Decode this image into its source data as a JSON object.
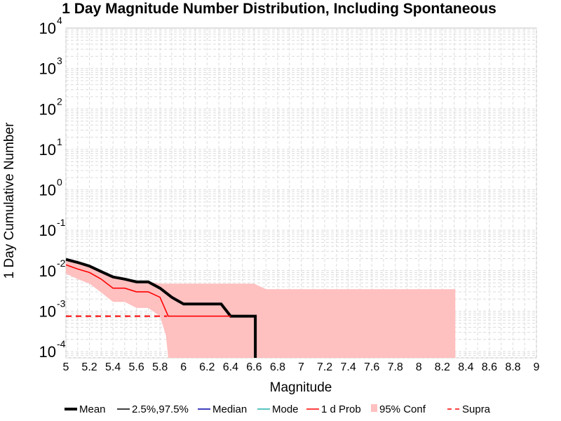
{
  "chart_data": {
    "type": "line",
    "title": "1 Day Magnitude Number Distribution, Including Spontaneous",
    "xlabel": "Magnitude",
    "ylabel": "1 Day Cumulative Number",
    "xlim": [
      5,
      9
    ],
    "ylim": [
      7e-05,
      10000
    ],
    "y_scale": "log",
    "grid": true,
    "x_ticks": [
      "5",
      "5.2",
      "5.4",
      "5.6",
      "5.8",
      "6",
      "6.2",
      "6.4",
      "6.6",
      "6.8",
      "7",
      "7.2",
      "7.4",
      "7.6",
      "7.8",
      "8",
      "8.2",
      "8.4",
      "8.6",
      "8.8",
      "9"
    ],
    "y_ticks": [
      {
        "base": "10",
        "exp": "-4",
        "value": 0.0001
      },
      {
        "base": "10",
        "exp": "-3",
        "value": 0.001
      },
      {
        "base": "10",
        "exp": "-2",
        "value": 0.01
      },
      {
        "base": "10",
        "exp": "-1",
        "value": 0.1
      },
      {
        "base": "10",
        "exp": "0",
        "value": 1
      },
      {
        "base": "10",
        "exp": "1",
        "value": 10
      },
      {
        "base": "10",
        "exp": "2",
        "value": 100
      },
      {
        "base": "10",
        "exp": "3",
        "value": 1000
      },
      {
        "base": "10",
        "exp": "4",
        "value": 10000
      }
    ],
    "legend_position": "bottom",
    "legend": [
      {
        "label": "Mean",
        "color": "#000000",
        "style": "thick-line"
      },
      {
        "label": "2.5%,97.5%",
        "color": "#000000",
        "style": "line"
      },
      {
        "label": "Median",
        "color": "#0000aa",
        "style": "line"
      },
      {
        "label": "Mode",
        "color": "#20b2aa",
        "style": "line"
      },
      {
        "label": "1 d Prob",
        "color": "#ff0000",
        "style": "line"
      },
      {
        "label": "95% Conf",
        "color": "#ffc0c0",
        "style": "patch"
      },
      {
        "label": "Supra",
        "color": "#ff0000",
        "style": "dashed"
      }
    ],
    "series": [
      {
        "name": "Mean",
        "color": "#000000",
        "x": [
          5.0,
          5.1,
          5.2,
          5.3,
          5.4,
          5.5,
          5.6,
          5.7,
          5.8,
          5.9,
          6.0,
          6.1,
          6.2,
          6.3,
          6.32,
          6.4,
          6.5,
          6.6,
          6.61,
          6.61
        ],
        "y": [
          0.019,
          0.016,
          0.013,
          0.0095,
          0.007,
          0.0062,
          0.0053,
          0.0053,
          0.0037,
          0.0022,
          0.0015,
          0.0015,
          0.0015,
          0.0015,
          0.0015,
          0.00075,
          0.00075,
          0.00075,
          0.00075,
          7e-05
        ]
      },
      {
        "name": "1 d Prob",
        "color": "#ff0000",
        "x": [
          5.0,
          5.1,
          5.2,
          5.3,
          5.4,
          5.5,
          5.6,
          5.7,
          5.8,
          5.87,
          6.0,
          6.2,
          6.4
        ],
        "y": [
          0.014,
          0.011,
          0.009,
          0.0062,
          0.0037,
          0.0037,
          0.003,
          0.003,
          0.0022,
          0.00075,
          0.00075,
          0.00075,
          0.00075
        ]
      },
      {
        "name": "Supra",
        "color": "#ff0000",
        "dashed": true,
        "x": [
          5.0,
          5.86
        ],
        "y": [
          0.00075,
          0.00075
        ]
      }
    ],
    "confidence_band": {
      "name": "95% Conf",
      "color": "#ffc0c0",
      "upper": {
        "x": [
          5.0,
          5.1,
          5.2,
          5.3,
          5.4,
          5.5,
          5.6,
          5.7,
          5.8,
          5.9,
          6.0,
          6.2,
          6.4,
          6.6,
          6.7,
          8.31
        ],
        "y": [
          0.019,
          0.016,
          0.013,
          0.0095,
          0.007,
          0.0062,
          0.0053,
          0.0053,
          0.0048,
          0.0048,
          0.0048,
          0.0048,
          0.0048,
          0.0048,
          0.0035,
          0.0035
        ]
      },
      "lower": {
        "x": [
          5.0,
          5.1,
          5.2,
          5.3,
          5.4,
          5.5,
          5.6,
          5.7,
          5.8,
          5.85,
          5.87
        ],
        "y": [
          0.0085,
          0.0062,
          0.0048,
          0.0029,
          0.0017,
          0.0017,
          0.0012,
          0.0012,
          0.00075,
          0.00025,
          7e-05
        ]
      }
    }
  }
}
